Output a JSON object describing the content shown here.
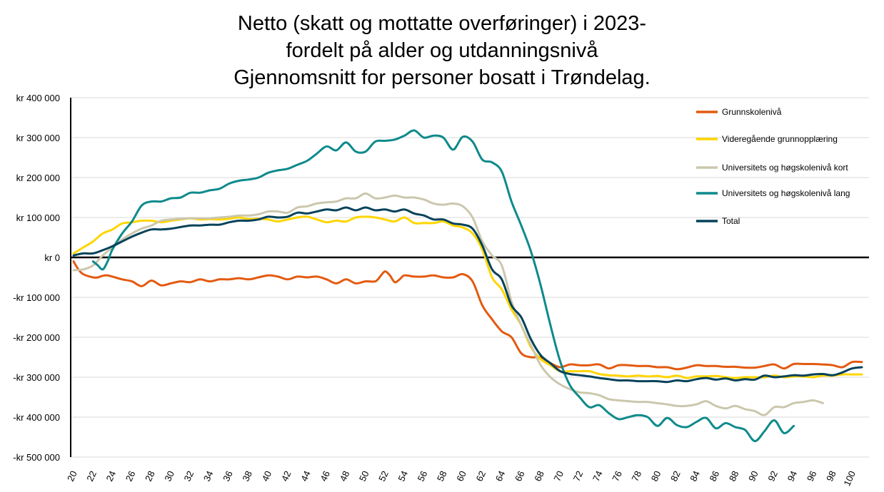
{
  "chart_data": {
    "type": "line",
    "title": [
      "Netto (skatt og mottatte overføringer) i 2023-",
      "fordelt på alder og utdanningsnivå",
      "Gjennomsnitt for personer bosatt i Trøndelag."
    ],
    "xlabel": "",
    "ylabel": "",
    "xlim": [
      20,
      101
    ],
    "ylim": [
      -500000,
      400000
    ],
    "x_ticks": [
      20,
      22,
      24,
      26,
      28,
      30,
      32,
      34,
      36,
      38,
      40,
      42,
      44,
      46,
      48,
      50,
      52,
      54,
      56,
      58,
      60,
      62,
      64,
      66,
      68,
      70,
      72,
      74,
      76,
      78,
      80,
      82,
      84,
      86,
      88,
      90,
      92,
      94,
      96,
      98,
      100
    ],
    "y_ticks": [
      {
        "value": 400000,
        "label": "kr 400 000"
      },
      {
        "value": 300000,
        "label": "kr 300 000"
      },
      {
        "value": 200000,
        "label": "kr 200 000"
      },
      {
        "value": 100000,
        "label": "kr 100 000"
      },
      {
        "value": 0,
        "label": "kr 0"
      },
      {
        "value": -100000,
        "label": "-kr 100 000"
      },
      {
        "value": -200000,
        "label": "-kr 200 000"
      },
      {
        "value": -300000,
        "label": "-kr 300 000"
      },
      {
        "value": -400000,
        "label": "-kr 400 000"
      },
      {
        "value": -500000,
        "label": "-kr 500 000"
      }
    ],
    "legend_position": "top-right",
    "series": [
      {
        "name": "Grunnskolenivå",
        "color": "#e35a10",
        "x": [
          20,
          20.5,
          21,
          22,
          22.5,
          23,
          23.5,
          24,
          25,
          26,
          27,
          28,
          29,
          30,
          31,
          32,
          33,
          34,
          35,
          36,
          37,
          38,
          39,
          40,
          41,
          42,
          43,
          44,
          45,
          46,
          47,
          48,
          49,
          50,
          51,
          51.5,
          52,
          52.5,
          53,
          53.5,
          54,
          55,
          56,
          57,
          58,
          59,
          60,
          61,
          62,
          63,
          64,
          65,
          66,
          67,
          68,
          69,
          70,
          71,
          72,
          73,
          74,
          75,
          76,
          77,
          78,
          79,
          80,
          81,
          82,
          83,
          84,
          85,
          86,
          87,
          88,
          89,
          90,
          91,
          92,
          93,
          94,
          95,
          96,
          97,
          98,
          99,
          100,
          101
        ],
        "values": [
          -10000,
          -30000,
          -42000,
          -50000,
          -50000,
          -46000,
          -45000,
          -48000,
          -55000,
          -60000,
          -72000,
          -58000,
          -70000,
          -65000,
          -60000,
          -62000,
          -55000,
          -60000,
          -55000,
          -55000,
          -52000,
          -55000,
          -50000,
          -45000,
          -48000,
          -55000,
          -48000,
          -50000,
          -48000,
          -55000,
          -65000,
          -55000,
          -65000,
          -60000,
          -60000,
          -48000,
          -35000,
          -45000,
          -62000,
          -55000,
          -45000,
          -48000,
          -48000,
          -45000,
          -50000,
          -50000,
          -42000,
          -60000,
          -120000,
          -155000,
          -185000,
          -200000,
          -240000,
          -250000,
          -250000,
          -265000,
          -275000,
          -268000,
          -270000,
          -270000,
          -268000,
          -278000,
          -270000,
          -270000,
          -272000,
          -272000,
          -275000,
          -275000,
          -280000,
          -276000,
          -270000,
          -272000,
          -272000,
          -274000,
          -274000,
          -276000,
          -276000,
          -272000,
          -268000,
          -278000,
          -267000,
          -267000,
          -267000,
          -268000,
          -270000,
          -275000,
          -262000,
          -262000
        ]
      },
      {
        "name": "Videregående grunnopplæring",
        "color": "#ffd500",
        "x": [
          20,
          21,
          22,
          23,
          24,
          25,
          26,
          27,
          28,
          29,
          30,
          31,
          32,
          33,
          34,
          35,
          36,
          37,
          38,
          39,
          40,
          41,
          42,
          43,
          44,
          45,
          46,
          47,
          48,
          49,
          50,
          51,
          52,
          53,
          54,
          55,
          56,
          57,
          58,
          59,
          60,
          61,
          62,
          63,
          64,
          65,
          66,
          67,
          68,
          69,
          70,
          71,
          72,
          73,
          74,
          75,
          76,
          77,
          78,
          79,
          80,
          81,
          82,
          83,
          84,
          85,
          86,
          87,
          88,
          89,
          90,
          91,
          92,
          93,
          94,
          95,
          96,
          97,
          98,
          99,
          100,
          101
        ],
        "values": [
          10000,
          25000,
          40000,
          60000,
          70000,
          85000,
          88000,
          92000,
          92000,
          88000,
          92000,
          95000,
          98000,
          95000,
          96000,
          95000,
          97000,
          100000,
          96000,
          97000,
          95000,
          90000,
          95000,
          100000,
          102000,
          95000,
          88000,
          92000,
          90000,
          100000,
          102000,
          100000,
          95000,
          90000,
          100000,
          86000,
          86000,
          86000,
          90000,
          80000,
          75000,
          60000,
          20000,
          -50000,
          -80000,
          -130000,
          -170000,
          -225000,
          -255000,
          -270000,
          -285000,
          -285000,
          -285000,
          -285000,
          -292000,
          -295000,
          -296000,
          -298000,
          -296000,
          -298000,
          -297000,
          -300000,
          -296000,
          -302000,
          -298000,
          -298000,
          -297000,
          -300000,
          -302000,
          -300000,
          -300000,
          -300000,
          -296000,
          -300000,
          -298000,
          -298000,
          -300000,
          -296000,
          -296000,
          -293000,
          -293000,
          -293000
        ]
      },
      {
        "name": "Universitets og høgskolenivå kort",
        "color": "#cbc7ad",
        "x": [
          20,
          21,
          22,
          23,
          24,
          25,
          26,
          27,
          28,
          29,
          30,
          31,
          32,
          33,
          34,
          35,
          36,
          37,
          38,
          39,
          40,
          41,
          42,
          43,
          44,
          45,
          46,
          47,
          48,
          49,
          50,
          51,
          52,
          53,
          54,
          55,
          56,
          57,
          58,
          59,
          60,
          61,
          62,
          63,
          64,
          65,
          66,
          67,
          68,
          69,
          70,
          71,
          72,
          73,
          74,
          75,
          76,
          77,
          78,
          79,
          80,
          81,
          82,
          83,
          84,
          85,
          86,
          87,
          88,
          89,
          90,
          91,
          92,
          93,
          94,
          95,
          96,
          97
        ],
        "values": [
          -32000,
          -30000,
          -20000,
          5000,
          25000,
          45000,
          60000,
          72000,
          80000,
          92000,
          95000,
          97000,
          98000,
          98000,
          98000,
          100000,
          102000,
          105000,
          105000,
          108000,
          115000,
          115000,
          112000,
          125000,
          128000,
          135000,
          138000,
          140000,
          148000,
          148000,
          160000,
          148000,
          150000,
          155000,
          150000,
          150000,
          145000,
          135000,
          132000,
          135000,
          128000,
          100000,
          40000,
          5000,
          -20000,
          -110000,
          -170000,
          -220000,
          -270000,
          -300000,
          -318000,
          -330000,
          -338000,
          -340000,
          -345000,
          -355000,
          -358000,
          -360000,
          -362000,
          -362000,
          -365000,
          -368000,
          -372000,
          -372000,
          -368000,
          -360000,
          -372000,
          -378000,
          -372000,
          -380000,
          -385000,
          -395000,
          -375000,
          -375000,
          -365000,
          -362000,
          -358000,
          -365000
        ]
      },
      {
        "name": "Universitets og høgskolenivå lang",
        "color": "#0e8a8c",
        "x": [
          22,
          22.5,
          23,
          23.5,
          24,
          25,
          26,
          27,
          28,
          29,
          30,
          31,
          32,
          33,
          34,
          35,
          36,
          37,
          38,
          39,
          40,
          41,
          42,
          43,
          44,
          45,
          46,
          47,
          48,
          49,
          50,
          51,
          52,
          53,
          54,
          55,
          56,
          57,
          58,
          59,
          60,
          61,
          62,
          63,
          64,
          65,
          66,
          67,
          68,
          69,
          70,
          71,
          72,
          73,
          74,
          75,
          76,
          77,
          78,
          79,
          80,
          81,
          82,
          83,
          84,
          85,
          86,
          87,
          88,
          89,
          90,
          91,
          92,
          93,
          94
        ],
        "values": [
          -10000,
          -20000,
          -30000,
          -10000,
          20000,
          60000,
          90000,
          130000,
          140000,
          140000,
          148000,
          150000,
          162000,
          162000,
          168000,
          172000,
          185000,
          192000,
          195000,
          200000,
          212000,
          218000,
          222000,
          232000,
          242000,
          260000,
          278000,
          268000,
          288000,
          265000,
          265000,
          290000,
          292000,
          295000,
          305000,
          318000,
          300000,
          305000,
          300000,
          270000,
          302000,
          290000,
          245000,
          238000,
          215000,
          140000,
          80000,
          15000,
          -70000,
          -170000,
          -260000,
          -320000,
          -350000,
          -375000,
          -370000,
          -390000,
          -405000,
          -400000,
          -395000,
          -400000,
          -422000,
          -402000,
          -420000,
          -425000,
          -412000,
          -402000,
          -428000,
          -415000,
          -425000,
          -432000,
          -460000,
          -435000,
          -408000,
          -440000,
          -422000
        ]
      },
      {
        "name": "Total",
        "color": "#05425a",
        "x": [
          20,
          21,
          22,
          23,
          24,
          25,
          26,
          27,
          28,
          29,
          30,
          31,
          32,
          33,
          34,
          35,
          36,
          37,
          38,
          39,
          40,
          41,
          42,
          43,
          44,
          45,
          46,
          47,
          48,
          49,
          50,
          51,
          52,
          53,
          54,
          55,
          56,
          57,
          58,
          59,
          60,
          61,
          62,
          63,
          64,
          65,
          66,
          67,
          68,
          69,
          70,
          71,
          72,
          73,
          74,
          75,
          76,
          77,
          78,
          79,
          80,
          81,
          82,
          83,
          84,
          85,
          86,
          87,
          88,
          89,
          90,
          91,
          92,
          93,
          94,
          95,
          96,
          97,
          98,
          99,
          100,
          101
        ],
        "values": [
          5000,
          10000,
          10000,
          18000,
          28000,
          40000,
          52000,
          62000,
          70000,
          70000,
          72000,
          76000,
          80000,
          80000,
          82000,
          82000,
          88000,
          92000,
          92000,
          95000,
          102000,
          100000,
          102000,
          112000,
          110000,
          115000,
          120000,
          118000,
          125000,
          118000,
          125000,
          118000,
          120000,
          115000,
          120000,
          110000,
          105000,
          95000,
          95000,
          85000,
          82000,
          72000,
          30000,
          -30000,
          -55000,
          -120000,
          -150000,
          -205000,
          -245000,
          -265000,
          -285000,
          -292000,
          -295000,
          -298000,
          -302000,
          -305000,
          -308000,
          -308000,
          -310000,
          -310000,
          -310000,
          -312000,
          -308000,
          -310000,
          -305000,
          -302000,
          -306000,
          -303000,
          -308000,
          -305000,
          -306000,
          -296000,
          -300000,
          -298000,
          -295000,
          -296000,
          -293000,
          -292000,
          -295000,
          -288000,
          -278000,
          -275000
        ]
      }
    ]
  }
}
